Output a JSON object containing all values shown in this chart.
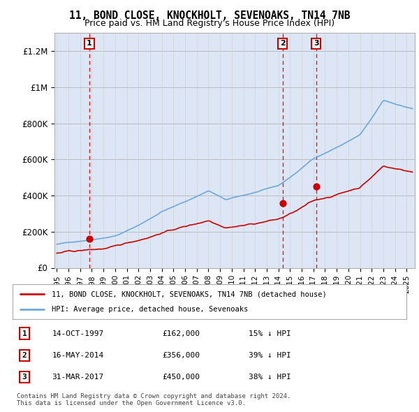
{
  "title": "11, BOND CLOSE, KNOCKHOLT, SEVENOAKS, TN14 7NB",
  "subtitle": "Price paid vs. HM Land Registry's House Price Index (HPI)",
  "ylabel": "",
  "background_color": "#dce6f5",
  "plot_bg_color": "#dce6f5",
  "outer_bg_color": "#ffffff",
  "hpi_color": "#6fa8dc",
  "price_color": "#cc0000",
  "sale_marker_color": "#cc0000",
  "dashed_line_color": "#cc0000",
  "ylim": [
    0,
    1300000
  ],
  "yticks": [
    0,
    200000,
    400000,
    600000,
    800000,
    1000000,
    1200000
  ],
  "ytick_labels": [
    "£0",
    "£200K",
    "£400K",
    "£600K",
    "£800K",
    "£1M",
    "£1.2M"
  ],
  "x_start_year": 1995,
  "x_end_year": 2025,
  "sales": [
    {
      "label": "1",
      "date_num": 1997.79,
      "price": 162000
    },
    {
      "label": "2",
      "date_num": 2014.37,
      "price": 356000
    },
    {
      "label": "3",
      "date_num": 2017.25,
      "price": 450000
    }
  ],
  "legend_line1": "11, BOND CLOSE, KNOCKHOLT, SEVENOAKS, TN14 7NB (detached house)",
  "legend_line2": "HPI: Average price, detached house, Sevenoaks",
  "table_rows": [
    [
      "1",
      "14-OCT-1997",
      "£162,000",
      "15% ↓ HPI"
    ],
    [
      "2",
      "16-MAY-2014",
      "£356,000",
      "39% ↓ HPI"
    ],
    [
      "3",
      "31-MAR-2017",
      "£450,000",
      "38% ↓ HPI"
    ]
  ],
  "footer": "Contains HM Land Registry data © Crown copyright and database right 2024.\nThis data is licensed under the Open Government Licence v3.0."
}
